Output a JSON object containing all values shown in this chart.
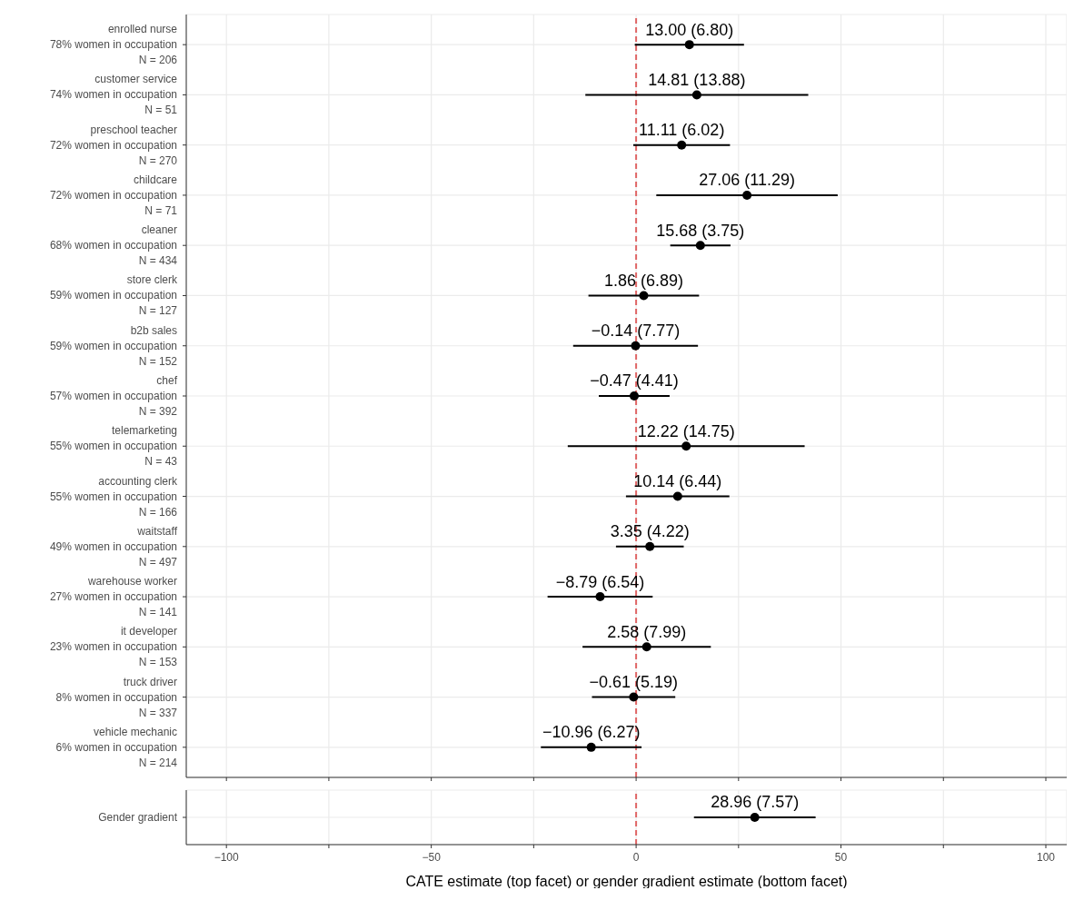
{
  "chart_data": [
    {
      "type": "scatter",
      "orientation": "horizontal",
      "color": "#000000",
      "marker": "circle",
      "grid": true,
      "tick_labels": "y",
      "categories": [
        "enrolled nurse\n78% women in occupation\nN = 206",
        "customer service\n74% women in occupation\nN = 51",
        "preschool teacher\n72% women in occupation\nN = 270",
        "childcare\n72% women in occupation\nN = 71",
        "cleaner\n68% women in occupation\nN = 434",
        "store clerk\n59% women in occupation\nN = 127",
        "b2b sales\n59% women in occupation\nN = 152",
        "chef\n57% women in occupation\nN = 392",
        "telemarketing\n55% women in occupation\nN = 43",
        "accounting clerk\n55% women in occupation\nN = 166",
        "waitstaff\n49% women in occupation\nN = 497",
        "warehouse worker\n27% women in occupation\nN = 141",
        "it developer\n23% women in occupation\nN = 153",
        "truck driver\n8% women in occupation\nN = 337",
        "vehicle mechanic\n6% women in occupation\nN = 214"
      ],
      "values": [
        13.0,
        14.81,
        11.11,
        27.06,
        15.68,
        1.86,
        -0.14,
        -0.47,
        12.22,
        10.14,
        3.35,
        -8.79,
        2.58,
        -0.61,
        -10.96
      ],
      "errors": [
        13.33,
        27.2,
        11.8,
        22.13,
        7.35,
        13.5,
        15.23,
        8.64,
        28.91,
        12.62,
        8.27,
        12.82,
        15.66,
        10.17,
        12.29
      ],
      "value_labels": [
        "13.00 (6.80)",
        "14.81 (13.88)",
        "11.11 (6.02)",
        "27.06 (11.29)",
        "15.68 (3.75)",
        "1.86 (6.89)",
        "−0.14 (7.77)",
        "−0.47 (4.41)",
        "12.22 (14.75)",
        "10.14 (6.44)",
        "3.35 (4.22)",
        "−8.79 (6.54)",
        "2.58 (7.99)",
        "−0.61 (5.19)",
        "−10.96 (6.27)"
      ],
      "xlim": [
        -109.8,
        105.1
      ],
      "xticks": [
        -100,
        -75,
        -50,
        -25,
        0,
        25,
        50,
        75,
        100
      ],
      "ref_lines": [
        {
          "axis": "x",
          "value": 0,
          "color": "#e06666",
          "line_style": "dashed"
        }
      ]
    },
    {
      "type": "scatter",
      "orientation": "horizontal",
      "color": "#000000",
      "marker": "circle",
      "grid": true,
      "xlabel": "CATE estimate (top facet) or gender gradient estimate (bottom facet)",
      "categories": [
        "Gender gradient"
      ],
      "values": [
        28.96
      ],
      "errors": [
        14.84
      ],
      "value_labels": [
        "28.96 (7.57)"
      ],
      "xlim": [
        -109.8,
        105.1
      ],
      "xticks": [
        {
          "value": -100,
          "label": "−100"
        },
        {
          "value": -75,
          "label": null
        },
        {
          "value": -50,
          "label": "−50"
        },
        {
          "value": -25,
          "label": null
        },
        0,
        {
          "value": 25,
          "label": null
        },
        50,
        {
          "value": 75,
          "label": null
        },
        100
      ],
      "ref_lines": [
        {
          "axis": "x",
          "value": 0,
          "color": "#e06666",
          "line_style": "dashed"
        }
      ]
    }
  ]
}
